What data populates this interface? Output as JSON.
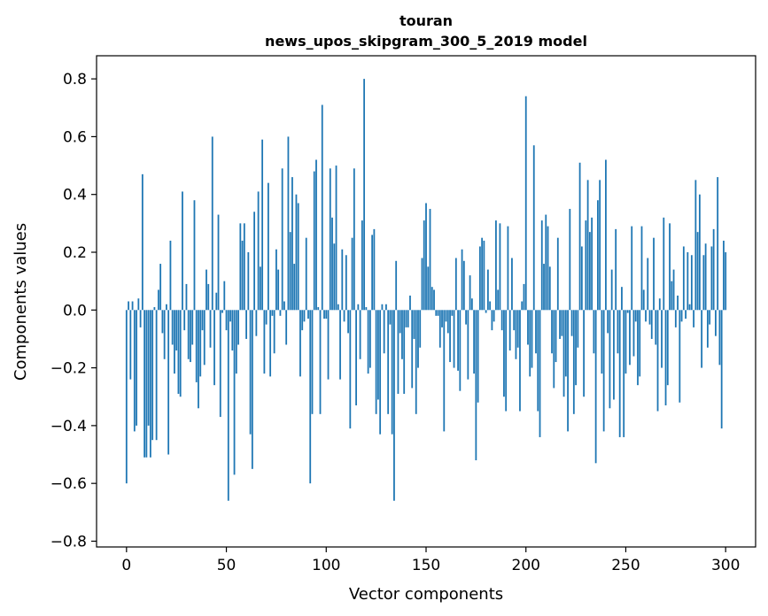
{
  "chart_data": {
    "type": "bar",
    "title_line1": "touran",
    "title_line2": "news_upos_skipgram_300_5_2019 model",
    "xlabel": "Vector components",
    "ylabel": "Components values",
    "xlim": [
      -15,
      315
    ],
    "ylim": [
      -0.82,
      0.88
    ],
    "xticks": [
      0,
      50,
      100,
      150,
      200,
      250,
      300
    ],
    "yticks": [
      -0.8,
      -0.6,
      -0.4,
      -0.2,
      0.0,
      0.2,
      0.4,
      0.6,
      0.8
    ],
    "ytick_labels": [
      "−0.8",
      "−0.6",
      "−0.4",
      "−0.2",
      "0.0",
      "0.2",
      "0.4",
      "0.6",
      "0.8"
    ],
    "bar_color": "#1f77b4",
    "values": [
      -0.6,
      0.03,
      -0.24,
      0.03,
      -0.42,
      -0.4,
      0.04,
      -0.06,
      0.47,
      -0.51,
      -0.51,
      -0.4,
      -0.51,
      -0.45,
      0.01,
      -0.45,
      0.07,
      0.16,
      -0.08,
      -0.17,
      0.02,
      -0.5,
      0.24,
      -0.12,
      -0.22,
      -0.14,
      -0.29,
      -0.3,
      0.41,
      -0.07,
      0.09,
      -0.17,
      -0.18,
      -0.12,
      0.38,
      -0.25,
      -0.34,
      -0.23,
      -0.07,
      -0.19,
      0.14,
      0.09,
      -0.13,
      0.6,
      -0.26,
      0.06,
      0.33,
      -0.37,
      -0.01,
      0.1,
      -0.07,
      -0.66,
      -0.04,
      -0.14,
      -0.57,
      -0.22,
      -0.12,
      0.3,
      0.24,
      0.3,
      -0.1,
      0.2,
      -0.43,
      -0.55,
      0.34,
      -0.09,
      0.41,
      0.15,
      0.59,
      -0.22,
      -0.05,
      0.44,
      -0.23,
      -0.02,
      -0.15,
      0.21,
      0.14,
      -0.02,
      0.49,
      0.03,
      -0.12,
      0.6,
      0.27,
      0.46,
      0.16,
      0.4,
      0.37,
      -0.23,
      -0.07,
      -0.04,
      0.25,
      -0.03,
      -0.6,
      -0.36,
      0.48,
      0.52,
      0.01,
      -0.36,
      0.71,
      -0.03,
      -0.03,
      -0.24,
      0.49,
      0.32,
      0.23,
      0.5,
      0.02,
      -0.24,
      0.21,
      -0.04,
      0.19,
      -0.08,
      -0.41,
      0.25,
      0.49,
      -0.33,
      0.02,
      -0.17,
      0.31,
      0.8,
      0.01,
      -0.22,
      -0.2,
      0.26,
      0.28,
      -0.36,
      -0.31,
      -0.43,
      0.02,
      -0.15,
      0.02,
      -0.36,
      -0.05,
      -0.43,
      -0.66,
      0.17,
      -0.29,
      -0.08,
      -0.17,
      -0.29,
      -0.06,
      -0.06,
      0.05,
      -0.27,
      -0.1,
      -0.36,
      -0.2,
      -0.13,
      0.18,
      0.31,
      0.37,
      0.15,
      0.35,
      0.08,
      0.07,
      -0.02,
      -0.02,
      -0.13,
      -0.06,
      -0.42,
      -0.04,
      -0.08,
      -0.18,
      -0.02,
      -0.2,
      0.18,
      -0.21,
      -0.28,
      0.21,
      0.17,
      -0.05,
      -0.24,
      0.12,
      0.04,
      -0.22,
      -0.52,
      -0.32,
      0.22,
      0.25,
      0.24,
      -0.01,
      0.14,
      0.03,
      -0.07,
      -0.04,
      0.31,
      0.07,
      0.3,
      -0.07,
      -0.3,
      -0.35,
      0.29,
      -0.14,
      0.18,
      -0.07,
      -0.17,
      -0.13,
      -0.35,
      0.03,
      0.09,
      0.74,
      -0.12,
      -0.23,
      -0.2,
      0.57,
      -0.15,
      -0.35,
      -0.44,
      0.31,
      0.16,
      0.33,
      0.29,
      0.15,
      -0.15,
      -0.27,
      -0.18,
      0.25,
      -0.1,
      -0.09,
      -0.3,
      -0.23,
      -0.42,
      0.35,
      -0.09,
      -0.36,
      -0.26,
      -0.13,
      0.51,
      0.22,
      -0.3,
      0.31,
      0.45,
      0.27,
      0.32,
      -0.15,
      -0.53,
      0.38,
      0.45,
      -0.22,
      -0.42,
      0.52,
      -0.08,
      -0.34,
      0.14,
      -0.31,
      0.28,
      -0.15,
      -0.44,
      0.08,
      -0.44,
      -0.22,
      -0.01,
      -0.19,
      0.29,
      -0.16,
      -0.04,
      -0.26,
      -0.23,
      0.29,
      0.07,
      -0.04,
      0.18,
      -0.05,
      -0.1,
      0.25,
      -0.12,
      -0.35,
      0.04,
      -0.2,
      0.32,
      -0.33,
      -0.26,
      0.3,
      0.1,
      0.14,
      -0.06,
      0.05,
      -0.32,
      -0.04,
      0.22,
      -0.03,
      0.2,
      0.02,
      0.19,
      -0.06,
      0.45,
      0.27,
      0.4,
      -0.2,
      0.19,
      0.23,
      -0.13,
      -0.05,
      0.22,
      0.28,
      -0.09,
      0.46,
      -0.19,
      -0.41,
      0.24,
      0.2
    ]
  }
}
